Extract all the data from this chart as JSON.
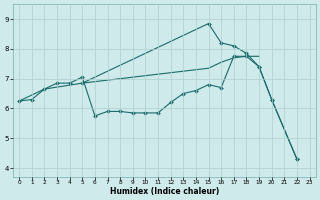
{
  "xlabel": "Humidex (Indice chaleur)",
  "ylabel": "",
  "background_color": "#ceeaea",
  "grid_color": "#aed0d0",
  "line_color": "#1a6b6b",
  "xlim": [
    -0.5,
    23.5
  ],
  "ylim": [
    3.7,
    9.5
  ],
  "xticks": [
    0,
    1,
    2,
    3,
    4,
    5,
    6,
    7,
    8,
    9,
    10,
    11,
    12,
    13,
    14,
    15,
    16,
    17,
    18,
    19,
    20,
    21,
    22,
    23
  ],
  "yticks": [
    4,
    5,
    6,
    7,
    8,
    9
  ],
  "series": [
    {
      "x": [
        0,
        1,
        2,
        3,
        4,
        5,
        6,
        7,
        8,
        9,
        10,
        11,
        12,
        13,
        14,
        15,
        16,
        17,
        18,
        19,
        20,
        22
      ],
      "y": [
        6.25,
        6.3,
        6.65,
        6.85,
        6.85,
        7.05,
        5.75,
        5.9,
        5.9,
        5.85,
        5.85,
        5.85,
        6.2,
        6.5,
        6.6,
        6.8,
        6.7,
        7.75,
        7.75,
        7.4,
        6.3,
        4.3
      ]
    },
    {
      "x": [
        0,
        2,
        5,
        15,
        16,
        17,
        18,
        19
      ],
      "y": [
        6.25,
        6.65,
        6.85,
        7.35,
        7.55,
        7.7,
        7.75,
        7.75
      ]
    },
    {
      "x": [
        5,
        15,
        16,
        17,
        18,
        19,
        20,
        22
      ],
      "y": [
        6.85,
        8.85,
        8.2,
        8.1,
        7.85,
        7.4,
        6.3,
        4.3
      ]
    }
  ],
  "figsize": [
    3.2,
    2.0
  ],
  "dpi": 100
}
